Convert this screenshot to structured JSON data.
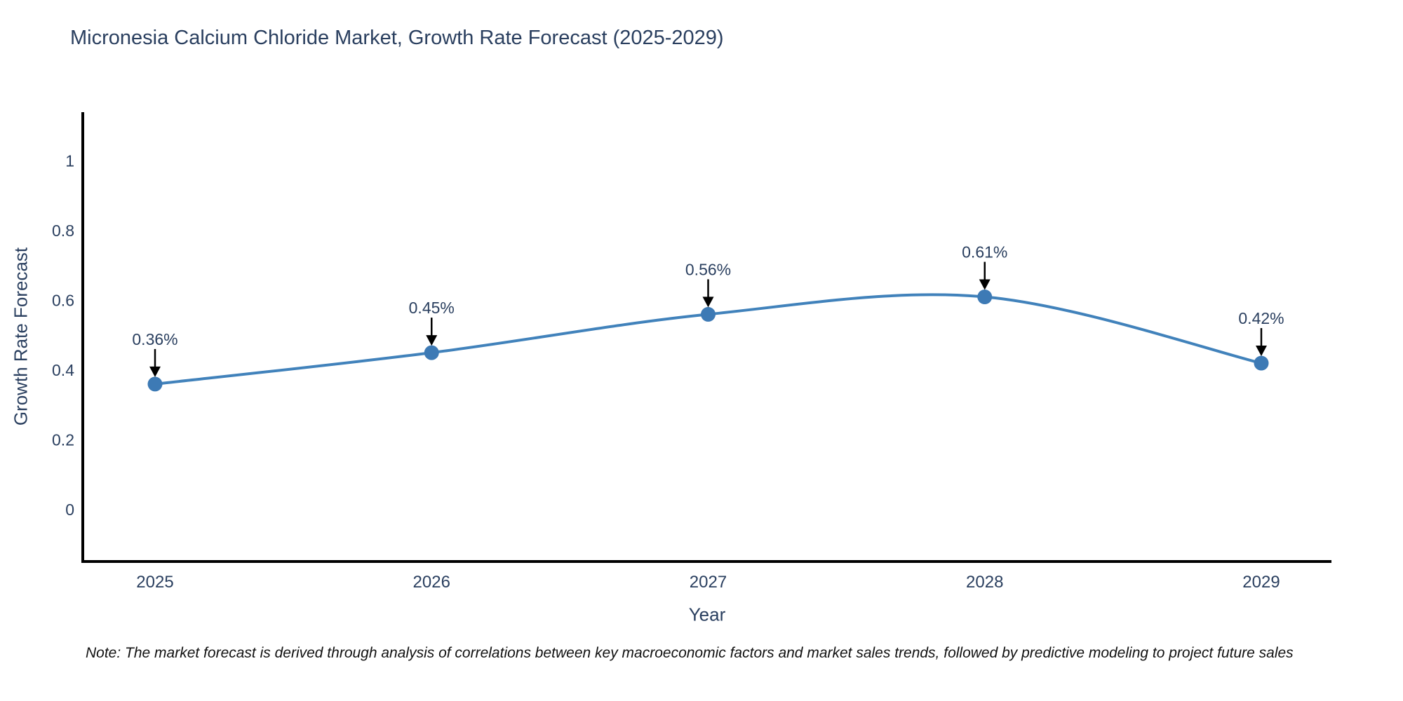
{
  "chart": {
    "title": "Micronesia Calcium Chloride Market, Growth Rate Forecast (2025-2029)",
    "xlabel": "Year",
    "ylabel": "Growth Rate Forecast"
  },
  "note": {
    "text": "Note: The market forecast is derived through analysis of correlations between key macroeconomic factors and market sales trends, followed by predictive modeling to project future sales"
  },
  "chart_data": {
    "type": "line",
    "line_shape": "spline",
    "title": "Micronesia Calcium Chloride Market, Growth Rate Forecast (2025-2029)",
    "xlabel": "Year",
    "ylabel": "Growth Rate Forecast",
    "categories": [
      "2025",
      "2026",
      "2027",
      "2028",
      "2029"
    ],
    "values": [
      0.36,
      0.45,
      0.56,
      0.61,
      0.42
    ],
    "point_labels": [
      "0.36%",
      "0.45%",
      "0.56%",
      "0.61%",
      "0.42%"
    ],
    "yticks": [
      0,
      0.2,
      0.4,
      0.6,
      0.8,
      1
    ],
    "ylim": [
      -0.15,
      1.14
    ],
    "grid": false,
    "legend": "none",
    "annotations_have_arrows": true,
    "colors": {
      "line": "#4182bb",
      "marker": "#3d7ab5",
      "axis_line": "#000000",
      "text": "#2a3f5f",
      "annotation_text": "#2a3f5f",
      "annotation_arrow": "#000000",
      "note_text": "#111111",
      "background": "#ffffff"
    }
  }
}
